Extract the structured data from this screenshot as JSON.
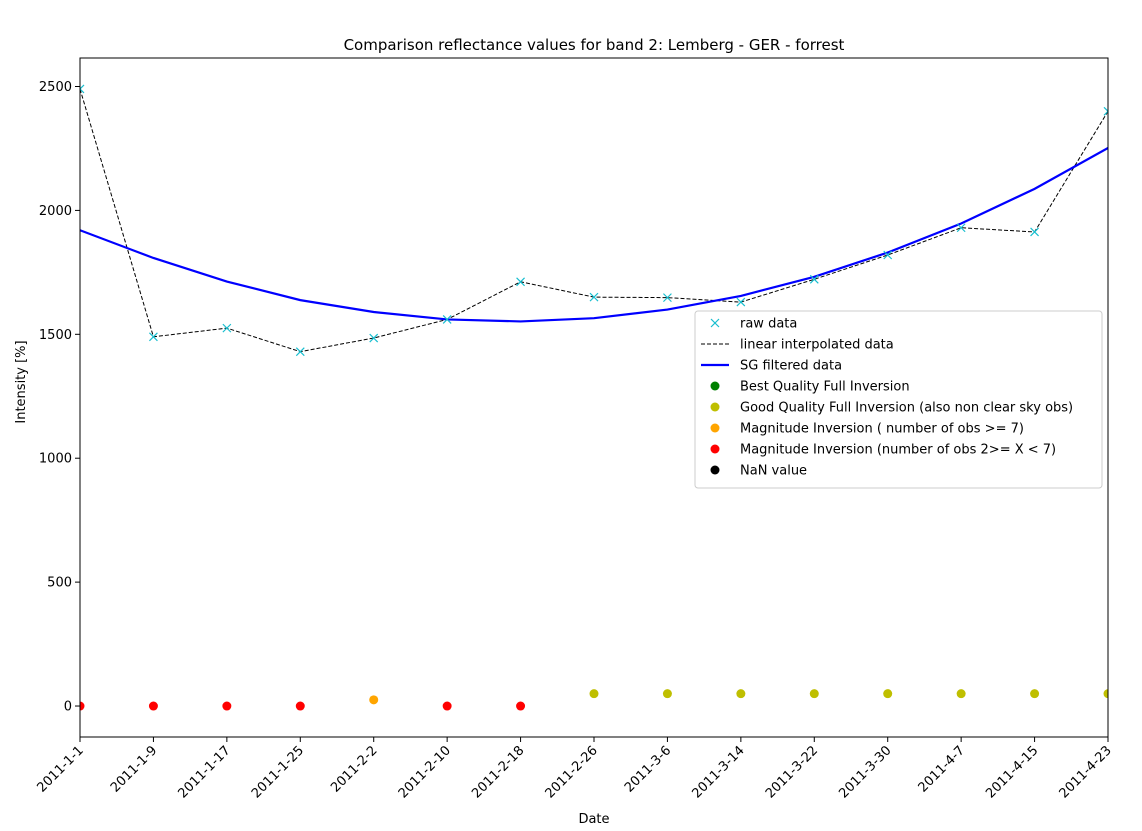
{
  "chart_data": {
    "type": "line",
    "title": "Comparison reflectance values for band 2: Lemberg - GER - forrest",
    "xlabel": "Date",
    "ylabel": "Intensity [%]",
    "ylim": [
      -125,
      2615
    ],
    "grid": false,
    "legend_position": "center-right",
    "x": [
      "2011-1-1",
      "2011-1-9",
      "2011-1-17",
      "2011-1-25",
      "2011-2-2",
      "2011-2-10",
      "2011-2-18",
      "2011-2-26",
      "2011-3-6",
      "2011-3-14",
      "2011-3-22",
      "2011-3-30",
      "2011-4-7",
      "2011-4-15",
      "2011-4-23"
    ],
    "y_ticks": [
      0,
      500,
      1000,
      1500,
      2000,
      2500
    ],
    "series": [
      {
        "name": "raw data",
        "style": "marker-x",
        "color": "#17becf",
        "values": [
          2490,
          1490,
          1525,
          1430,
          1485,
          1560,
          1712,
          1650,
          1648,
          1630,
          1722,
          1820,
          1930,
          1913,
          2400
        ]
      },
      {
        "name": "linear interpolated data",
        "style": "dashed-line",
        "color": "#000000",
        "values": [
          2490,
          1490,
          1525,
          1430,
          1485,
          1560,
          1712,
          1650,
          1648,
          1630,
          1722,
          1820,
          1930,
          1913,
          2400
        ]
      },
      {
        "name": "SG filtered data",
        "style": "solid-line",
        "color": "#0000ff",
        "values": [
          1920,
          1808,
          1713,
          1638,
          1590,
          1560,
          1552,
          1565,
          1600,
          1655,
          1732,
          1830,
          1947,
          2087,
          2252
        ]
      },
      {
        "name": "Best Quality Full Inversion",
        "style": "dot",
        "color": "#008000",
        "points": []
      },
      {
        "name": "Good Quality Full Inversion (also non clear sky obs)",
        "style": "dot",
        "color": "#bfbf00",
        "points": [
          {
            "x": "2011-2-26",
            "y": 50
          },
          {
            "x": "2011-3-6",
            "y": 50
          },
          {
            "x": "2011-3-14",
            "y": 50
          },
          {
            "x": "2011-3-22",
            "y": 50
          },
          {
            "x": "2011-3-30",
            "y": 50
          },
          {
            "x": "2011-4-7",
            "y": 50
          },
          {
            "x": "2011-4-15",
            "y": 50
          },
          {
            "x": "2011-4-23",
            "y": 50
          }
        ]
      },
      {
        "name": "Magnitude Inversion ( number of obs >= 7)",
        "style": "dot",
        "color": "#ffa500",
        "points": [
          {
            "x": "2011-2-2",
            "y": 25
          }
        ]
      },
      {
        "name": "Magnitude Inversion (number of obs 2>= X < 7)",
        "style": "dot",
        "color": "#ff0000",
        "points": [
          {
            "x": "2011-1-1",
            "y": 0
          },
          {
            "x": "2011-1-9",
            "y": 0
          },
          {
            "x": "2011-1-17",
            "y": 0
          },
          {
            "x": "2011-1-25",
            "y": 0
          },
          {
            "x": "2011-2-10",
            "y": 0
          },
          {
            "x": "2011-2-18",
            "y": 0
          }
        ]
      },
      {
        "name": "NaN value",
        "style": "dot",
        "color": "#000000",
        "points": []
      }
    ]
  }
}
